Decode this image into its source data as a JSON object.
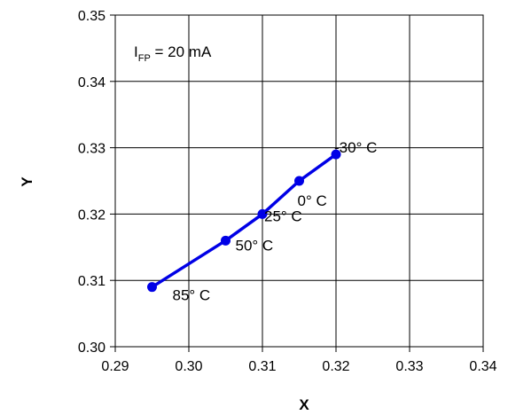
{
  "chart_data": {
    "type": "line",
    "xlabel": "X",
    "ylabel": "Y",
    "xlim": [
      0.29,
      0.34
    ],
    "ylim": [
      0.3,
      0.35
    ],
    "x_ticks": [
      "0.29",
      "0.30",
      "0.31",
      "0.32",
      "0.33",
      "0.34"
    ],
    "y_ticks": [
      "0.30",
      "0.31",
      "0.32",
      "0.33",
      "0.34",
      "0.35"
    ],
    "grid": true,
    "series": [
      {
        "color": "#0000e6",
        "points": [
          {
            "x": 0.295,
            "y": 0.309,
            "label": "85° C"
          },
          {
            "x": 0.305,
            "y": 0.316,
            "label": "50° C"
          },
          {
            "x": 0.31,
            "y": 0.32,
            "label": "25° C"
          },
          {
            "x": 0.315,
            "y": 0.325,
            "label": "0° C"
          },
          {
            "x": 0.32,
            "y": 0.329,
            "label": "-30° C"
          }
        ]
      }
    ],
    "annotation": {
      "text_main": "I",
      "text_sub": "FP",
      "text_rest": " = 20 mA"
    }
  }
}
